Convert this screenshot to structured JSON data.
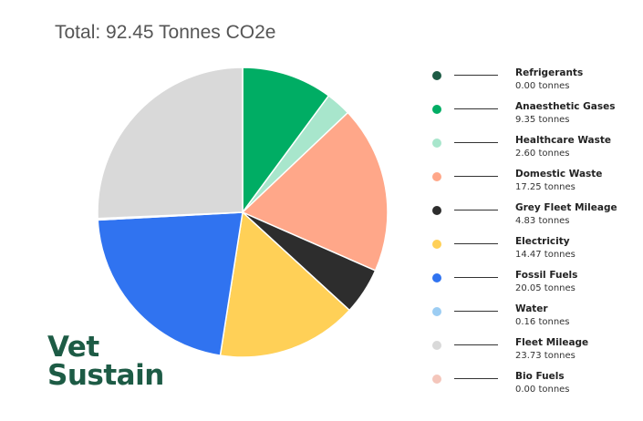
{
  "chart_data": {
    "type": "pie",
    "title": "Total: 92.45 Tonnes CO2e",
    "start_angle_deg": 0,
    "direction": "clockwise",
    "slices": [
      {
        "name": "Refrigerants",
        "value": 0.0,
        "value_label": "0.00 tonnes",
        "color": "#1d5b45"
      },
      {
        "name": "Anaesthetic Gases",
        "value": 9.35,
        "value_label": "9.35 tonnes",
        "color": "#00ad64"
      },
      {
        "name": "Healthcare Waste",
        "value": 2.6,
        "value_label": "2.60 tonnes",
        "color": "#a8e6cc"
      },
      {
        "name": "Domestic Waste",
        "value": 17.25,
        "value_label": "17.25 tonnes",
        "color": "#ffa789"
      },
      {
        "name": "Grey Fleet Mileage",
        "value": 4.83,
        "value_label": "4.83 tonnes",
        "color": "#2d2d2d"
      },
      {
        "name": "Electricity",
        "value": 14.47,
        "value_label": "14.47 tonnes",
        "color": "#ffd057"
      },
      {
        "name": "Fossil Fuels",
        "value": 20.05,
        "value_label": "20.05 tonnes",
        "color": "#3073f0"
      },
      {
        "name": "Water",
        "value": 0.16,
        "value_label": "0.16 tonnes",
        "color": "#9ccdf3"
      },
      {
        "name": "Fleet Mileage",
        "value": 23.73,
        "value_label": "23.73 tonnes",
        "color": "#d9d9d9"
      },
      {
        "name": "Bio Fuels",
        "value": 0.0,
        "value_label": "0.00 tonnes",
        "color": "#f4c6bb"
      }
    ],
    "legend_placement": "right"
  },
  "logo": {
    "line1": "Vet",
    "line2": "Sustain",
    "color": "#1d5b45"
  }
}
